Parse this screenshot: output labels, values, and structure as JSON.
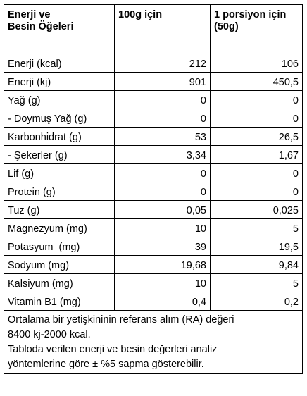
{
  "header": {
    "col1": "Enerji ve\nBesin Öğeleri",
    "col1_line1": "Enerji ve",
    "col1_line2": "Besin Öğeleri",
    "col2": "100g için",
    "col3_line1": "1 porsiyon için",
    "col3_line2": "(50g)"
  },
  "rows": [
    {
      "label": "Enerji (kcal)",
      "per100": "212",
      "perServing": "106"
    },
    {
      "label": "Enerji (kj)",
      "per100": "901",
      "perServing": "450,5"
    },
    {
      "label": "Yağ (g)",
      "per100": "0",
      "perServing": "0"
    },
    {
      "label": "- Doymuş Yağ (g)",
      "per100": "0",
      "perServing": "0"
    },
    {
      "label": "Karbonhidrat (g)",
      "per100": "53",
      "perServing": "26,5"
    },
    {
      "label": "- Şekerler (g)",
      "per100": "3,34",
      "perServing": "1,67"
    },
    {
      "label": "Lif (g)",
      "per100": "0",
      "perServing": "0"
    },
    {
      "label": "Protein (g)",
      "per100": "0",
      "perServing": "0"
    },
    {
      "label": "Tuz (g)",
      "per100": "0,05",
      "perServing": "0,025"
    },
    {
      "label": "Magnezyum (mg)",
      "per100": "10",
      "perServing": "5"
    },
    {
      "label": "Potasyum  (mg)",
      "per100": "39",
      "perServing": "19,5"
    },
    {
      "label": "Sodyum (mg)",
      "per100": "19,68",
      "perServing": "9,84"
    },
    {
      "label": "Kalsiyum (mg)",
      "per100": "10",
      "perServing": "5"
    },
    {
      "label": "Vitamin B1 (mg)",
      "per100": "0,4",
      "perServing": "0,2"
    }
  ],
  "footnote": {
    "line1": "Ortalama bir yetişkininin referans alım (RA) değeri",
    "line2": "8400 kj-2000 kcal.",
    "line3": "Tabloda verilen enerji ve besin değerleri analiz",
    "line4": "yöntemlerine göre ± %5 sapma gösterebilir."
  }
}
